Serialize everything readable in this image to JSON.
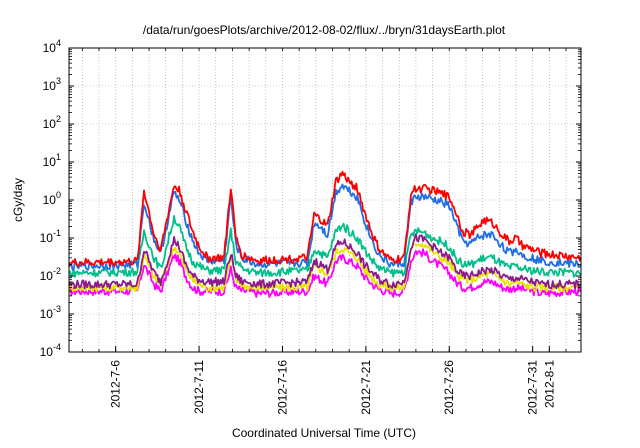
{
  "chart_data": {
    "type": "line",
    "title": "/data/run/goesPlots/archive/2012-08-02/flux/../bryn/31daysEarth.plot",
    "xlabel": "Coordinated Universal Time (UTC)",
    "ylabel": "cGy/day",
    "yscale": "log",
    "ylim": [
      0.0001,
      10000
    ],
    "y_ticks": [
      {
        "base": "10",
        "exp": "4",
        "value": 10000
      },
      {
        "base": "10",
        "exp": "3",
        "value": 1000
      },
      {
        "base": "10",
        "exp": "2",
        "value": 100
      },
      {
        "base": "10",
        "exp": "1",
        "value": 10
      },
      {
        "base": "10",
        "exp": "0",
        "value": 1
      },
      {
        "base": "10",
        "exp": "-1",
        "value": 0.1
      },
      {
        "base": "10",
        "exp": "-2",
        "value": 0.01
      },
      {
        "base": "10",
        "exp": "-3",
        "value": 0.001
      },
      {
        "base": "10",
        "exp": "-4",
        "value": 0.0001
      }
    ],
    "xlim_days": [
      3.2,
      33.9
    ],
    "x_ticks": [
      {
        "label": "2012-7-6",
        "day": 6
      },
      {
        "label": "2012-7-11",
        "day": 11
      },
      {
        "label": "2012-7-16",
        "day": 16
      },
      {
        "label": "2012-7-21",
        "day": 21
      },
      {
        "label": "2012-7-26",
        "day": 26
      },
      {
        "label": "2012-7-31",
        "day": 31
      },
      {
        "label": "2012-8-1",
        "day": 32
      }
    ],
    "grid": true,
    "series": [
      {
        "name": "red",
        "color": "#ff0000",
        "x": [
          3.2,
          7.3,
          7.7,
          8.3,
          8.7,
          9.5,
          9.8,
          10.2,
          10.6,
          11.0,
          11.5,
          12.5,
          12.9,
          13.2,
          13.6,
          14.0,
          14.5,
          17.5,
          17.9,
          18.3,
          18.7,
          19.2,
          19.6,
          20.0,
          20.5,
          20.9,
          21.4,
          21.8,
          22.5,
          23.3,
          23.7,
          24.0,
          24.5,
          25.0,
          25.5,
          26.0,
          26.4,
          26.8,
          27.3,
          27.7,
          28.1,
          28.6,
          29.2,
          29.6,
          30.0,
          30.4,
          31.0,
          31.5,
          33.9
        ],
        "y": [
          0.022,
          0.024,
          1.8,
          0.12,
          0.05,
          2.4,
          1.8,
          0.55,
          0.15,
          0.06,
          0.03,
          0.03,
          2.2,
          0.1,
          0.035,
          0.03,
          0.025,
          0.03,
          0.4,
          0.3,
          0.2,
          3.0,
          5.0,
          3.0,
          2.0,
          0.5,
          0.12,
          0.05,
          0.025,
          0.03,
          1.5,
          2.0,
          2.0,
          1.8,
          1.5,
          1.2,
          0.5,
          0.15,
          0.12,
          0.2,
          0.3,
          0.25,
          0.12,
          0.08,
          0.1,
          0.06,
          0.05,
          0.04,
          0.03
        ]
      },
      {
        "name": "blue",
        "color": "#1f6fe5",
        "x": [
          3.2,
          7.3,
          7.7,
          8.3,
          8.7,
          9.5,
          9.8,
          10.2,
          10.6,
          11.0,
          11.5,
          12.5,
          12.9,
          13.2,
          13.6,
          14.0,
          14.5,
          17.5,
          17.9,
          18.3,
          18.7,
          19.2,
          19.6,
          20.0,
          20.5,
          20.9,
          21.4,
          21.8,
          22.5,
          23.3,
          23.7,
          24.0,
          24.5,
          25.0,
          25.5,
          26.0,
          26.4,
          26.8,
          27.3,
          27.7,
          28.1,
          28.6,
          29.2,
          29.6,
          30.0,
          30.4,
          31.0,
          31.5,
          33.9
        ],
        "y": [
          0.018,
          0.02,
          0.9,
          0.09,
          0.04,
          1.6,
          1.0,
          0.3,
          0.09,
          0.04,
          0.025,
          0.025,
          1.2,
          0.07,
          0.028,
          0.025,
          0.02,
          0.022,
          0.25,
          0.2,
          0.12,
          1.6,
          2.5,
          1.8,
          1.2,
          0.3,
          0.08,
          0.035,
          0.02,
          0.022,
          0.9,
          1.2,
          1.2,
          1.0,
          0.9,
          0.7,
          0.25,
          0.08,
          0.07,
          0.1,
          0.12,
          0.12,
          0.06,
          0.04,
          0.05,
          0.035,
          0.03,
          0.025,
          0.02
        ]
      },
      {
        "name": "green",
        "color": "#00bf8a",
        "x": [
          3.2,
          7.3,
          7.7,
          8.3,
          8.7,
          9.5,
          9.8,
          10.2,
          10.6,
          11.0,
          11.5,
          12.5,
          12.9,
          13.2,
          13.6,
          14.0,
          14.5,
          17.5,
          17.9,
          18.3,
          18.7,
          19.2,
          19.6,
          20.0,
          20.5,
          20.9,
          21.4,
          21.8,
          22.5,
          23.3,
          23.7,
          24.0,
          24.5,
          25.0,
          25.5,
          26.0,
          26.4,
          26.8,
          27.3,
          27.7,
          28.1,
          28.6,
          29.2,
          29.6,
          30.0,
          30.4,
          31.0,
          31.5,
          33.9
        ],
        "y": [
          0.012,
          0.013,
          0.15,
          0.03,
          0.015,
          0.35,
          0.2,
          0.06,
          0.025,
          0.018,
          0.014,
          0.014,
          0.15,
          0.025,
          0.015,
          0.014,
          0.012,
          0.014,
          0.05,
          0.04,
          0.03,
          0.15,
          0.22,
          0.15,
          0.1,
          0.05,
          0.025,
          0.016,
          0.012,
          0.013,
          0.12,
          0.15,
          0.14,
          0.1,
          0.08,
          0.06,
          0.03,
          0.02,
          0.02,
          0.025,
          0.03,
          0.03,
          0.02,
          0.016,
          0.018,
          0.015,
          0.014,
          0.013,
          0.012
        ]
      },
      {
        "name": "purple",
        "color": "#8c1a8c",
        "x": [
          3.2,
          7.3,
          7.7,
          8.3,
          8.7,
          9.5,
          9.8,
          10.2,
          10.6,
          11.0,
          11.5,
          12.5,
          12.9,
          13.2,
          13.6,
          14.0,
          14.5,
          17.5,
          17.9,
          18.3,
          18.7,
          19.2,
          19.6,
          20.0,
          20.5,
          20.9,
          21.4,
          21.8,
          22.5,
          23.3,
          23.7,
          24.0,
          24.5,
          25.0,
          25.5,
          26.0,
          26.4,
          26.8,
          27.3,
          27.7,
          28.1,
          28.6,
          29.2,
          29.6,
          30.0,
          30.4,
          31.0,
          31.5,
          33.9
        ],
        "y": [
          0.006,
          0.006,
          0.05,
          0.012,
          0.007,
          0.09,
          0.06,
          0.02,
          0.01,
          0.008,
          0.007,
          0.007,
          0.04,
          0.01,
          0.007,
          0.007,
          0.006,
          0.007,
          0.025,
          0.02,
          0.015,
          0.06,
          0.08,
          0.06,
          0.04,
          0.02,
          0.012,
          0.008,
          0.006,
          0.007,
          0.06,
          0.1,
          0.09,
          0.06,
          0.04,
          0.03,
          0.015,
          0.01,
          0.01,
          0.012,
          0.014,
          0.014,
          0.01,
          0.008,
          0.009,
          0.008,
          0.007,
          0.006,
          0.006
        ]
      },
      {
        "name": "yellow",
        "color": "#e6e600",
        "x": [
          3.2,
          7.3,
          7.7,
          8.3,
          8.7,
          9.5,
          9.8,
          10.2,
          10.6,
          11.0,
          11.5,
          12.5,
          12.9,
          13.2,
          13.6,
          14.0,
          14.5,
          17.5,
          17.9,
          18.3,
          18.7,
          19.2,
          19.6,
          20.0,
          20.5,
          20.9,
          21.4,
          21.8,
          22.5,
          23.3,
          23.7,
          24.0,
          24.5,
          25.0,
          25.5,
          26.0,
          26.4,
          26.8,
          27.3,
          27.7,
          28.1,
          28.6,
          29.2,
          29.6,
          30.0,
          30.4,
          31.0,
          31.5,
          33.9
        ],
        "y": [
          0.005,
          0.005,
          0.035,
          0.009,
          0.006,
          0.06,
          0.04,
          0.015,
          0.008,
          0.006,
          0.005,
          0.005,
          0.03,
          0.008,
          0.006,
          0.005,
          0.005,
          0.005,
          0.018,
          0.015,
          0.011,
          0.04,
          0.055,
          0.04,
          0.03,
          0.015,
          0.009,
          0.006,
          0.005,
          0.005,
          0.045,
          0.075,
          0.07,
          0.045,
          0.03,
          0.022,
          0.011,
          0.008,
          0.008,
          0.009,
          0.011,
          0.011,
          0.008,
          0.006,
          0.007,
          0.006,
          0.005,
          0.005,
          0.005
        ]
      },
      {
        "name": "magenta",
        "color": "#ff00ff",
        "x": [
          3.2,
          7.3,
          7.7,
          8.3,
          8.7,
          9.5,
          9.8,
          10.2,
          10.6,
          11.0,
          11.5,
          12.5,
          12.9,
          13.2,
          13.6,
          14.0,
          14.5,
          17.5,
          17.9,
          18.3,
          18.7,
          19.2,
          19.6,
          20.0,
          20.5,
          20.9,
          21.4,
          21.8,
          22.5,
          23.3,
          23.7,
          24.0,
          24.5,
          25.0,
          25.5,
          26.0,
          26.4,
          26.8,
          27.3,
          27.7,
          28.1,
          28.6,
          29.2,
          29.6,
          30.0,
          30.4,
          31.0,
          31.5,
          33.9
        ],
        "y": [
          0.004,
          0.004,
          0.02,
          0.006,
          0.004,
          0.035,
          0.025,
          0.01,
          0.005,
          0.004,
          0.004,
          0.004,
          0.015,
          0.005,
          0.004,
          0.004,
          0.0035,
          0.004,
          0.01,
          0.008,
          0.006,
          0.025,
          0.03,
          0.025,
          0.018,
          0.01,
          0.006,
          0.0045,
          0.0035,
          0.004,
          0.025,
          0.045,
          0.04,
          0.025,
          0.018,
          0.012,
          0.007,
          0.005,
          0.005,
          0.006,
          0.007,
          0.007,
          0.005,
          0.0045,
          0.005,
          0.0045,
          0.004,
          0.0035,
          0.004
        ]
      }
    ]
  }
}
